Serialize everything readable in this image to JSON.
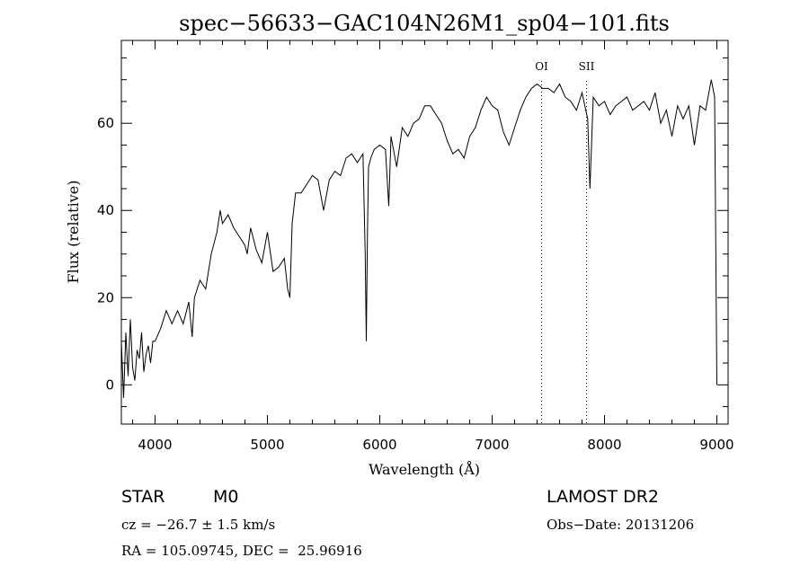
{
  "chart_data": {
    "type": "line",
    "title": "spec−56633−GAC104N26M1_sp04−101.fits",
    "xlabel": "Wavelength (Å)",
    "ylabel": "Flux (relative)",
    "xlim": [
      3700,
      9100
    ],
    "ylim": [
      -9,
      79
    ],
    "x_ticks": [
      4000,
      5000,
      6000,
      7000,
      8000,
      9000
    ],
    "y_ticks": [
      0,
      20,
      40,
      60
    ],
    "x_tick_labels": [
      "4000",
      "5000",
      "6000",
      "7000",
      "8000",
      "9000"
    ],
    "y_tick_labels": [
      "0",
      "20",
      "40",
      "60"
    ],
    "line_markers": [
      {
        "label": "OI",
        "x": 7440
      },
      {
        "label": "SII",
        "x": 7840
      }
    ],
    "series": [
      {
        "x": [
          3700,
          3720,
          3740,
          3760,
          3780,
          3800,
          3820,
          3840,
          3860,
          3880,
          3900,
          3920,
          3940,
          3960,
          3980,
          4000,
          4050,
          4100,
          4150,
          4200,
          4250,
          4300,
          4330,
          4350,
          4400,
          4450,
          4500,
          4550,
          4580,
          4600,
          4650,
          4700,
          4750,
          4800,
          4820,
          4850,
          4900,
          4950,
          5000,
          5050,
          5100,
          5150,
          5180,
          5200,
          5220,
          5250,
          5300,
          5350,
          5400,
          5450,
          5500,
          5550,
          5600,
          5650,
          5700,
          5750,
          5800,
          5850,
          5870,
          5880,
          5890,
          5900,
          5920,
          5950,
          6000,
          6050,
          6080,
          6100,
          6150,
          6200,
          6250,
          6300,
          6350,
          6400,
          6450,
          6500,
          6550,
          6600,
          6650,
          6700,
          6750,
          6800,
          6850,
          6900,
          6950,
          7000,
          7050,
          7100,
          7150,
          7200,
          7250,
          7300,
          7350,
          7400,
          7450,
          7500,
          7550,
          7600,
          7650,
          7700,
          7750,
          7800,
          7850,
          7870,
          7900,
          7950,
          8000,
          8050,
          8100,
          8150,
          8200,
          8250,
          8300,
          8350,
          8400,
          8450,
          8500,
          8550,
          8600,
          8650,
          8700,
          8750,
          8800,
          8850,
          8900,
          8950,
          8980,
          9000
        ],
        "y": [
          10,
          -3,
          12,
          2,
          15,
          4,
          1,
          8,
          6,
          12,
          3,
          7,
          9,
          5,
          10,
          10,
          13,
          17,
          14,
          17,
          14,
          19,
          11,
          20,
          24,
          22,
          30,
          35,
          40,
          37,
          39,
          36,
          34,
          32,
          30,
          36,
          31,
          28,
          35,
          26,
          27,
          29,
          22,
          20,
          37,
          44,
          44,
          46,
          48,
          47,
          40,
          47,
          49,
          48,
          52,
          53,
          51,
          53,
          30,
          10,
          35,
          50,
          52,
          54,
          55,
          54,
          41,
          57,
          50,
          59,
          57,
          60,
          61,
          64,
          64,
          62,
          60,
          56,
          53,
          54,
          52,
          57,
          59,
          63,
          66,
          64,
          63,
          58,
          55,
          59,
          63,
          66,
          68,
          69,
          68,
          68,
          67,
          69,
          66,
          65,
          63,
          67,
          61,
          45,
          66,
          64,
          65,
          62,
          64,
          65,
          66,
          63,
          64,
          65,
          63,
          67,
          60,
          63,
          57,
          64,
          61,
          64,
          55,
          64,
          63,
          70,
          66,
          0
        ]
      }
    ]
  },
  "info": {
    "class_label": "STAR",
    "subclass": "M0",
    "survey": "LAMOST DR2",
    "cz_line": "cz = −26.7 ± 1.5 km/s",
    "obs_date": "Obs−Date: 20131206",
    "radec_line": "RA = 105.09745, DEC =  25.96916"
  }
}
